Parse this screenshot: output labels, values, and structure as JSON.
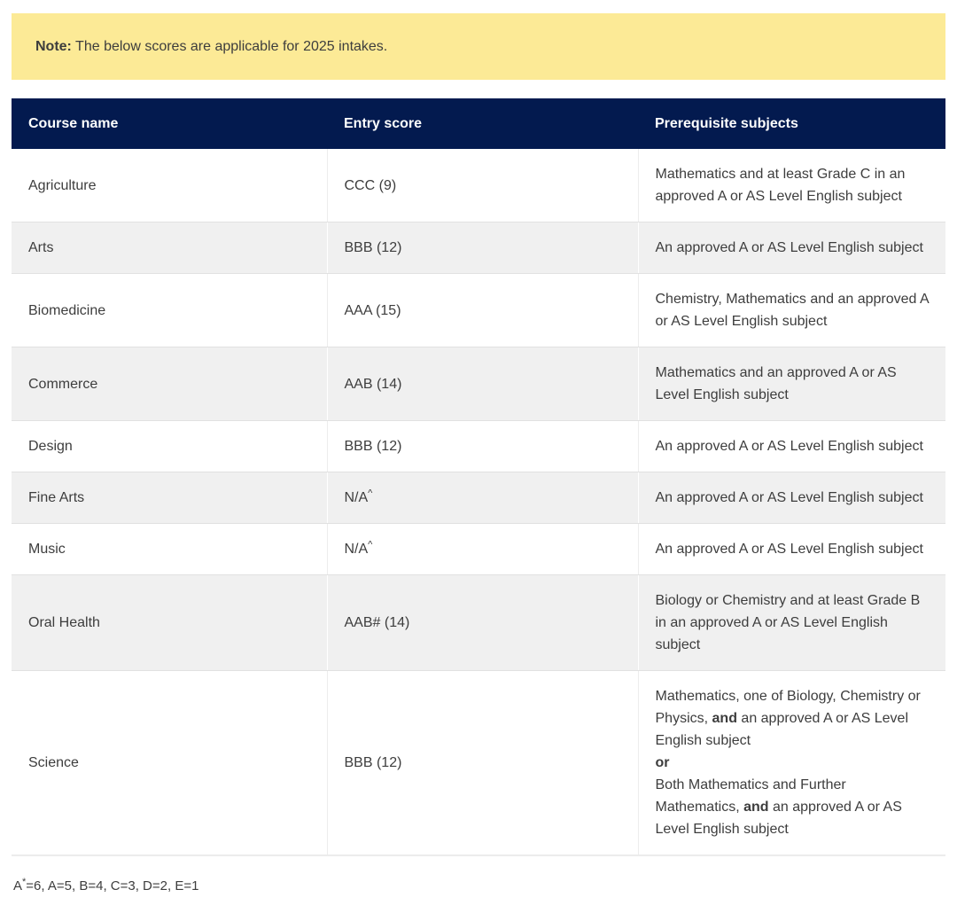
{
  "note": {
    "label": "Note:",
    "text": "The below scores are applicable for 2025 intakes."
  },
  "table": {
    "headers": [
      "Course name",
      "Entry score",
      "Prerequisite subjects"
    ],
    "rows": [
      {
        "course": "Agriculture",
        "score": "CCC (9)",
        "score_sup": "",
        "prereq": [
          [
            {
              "t": "Mathematics and at least Grade C in an approved A or AS Level English subject"
            }
          ]
        ]
      },
      {
        "course": "Arts",
        "score": "BBB (12)",
        "score_sup": "",
        "prereq": [
          [
            {
              "t": "An approved A or AS Level English subject"
            }
          ]
        ]
      },
      {
        "course": "Biomedicine",
        "score": "AAA (15)",
        "score_sup": "",
        "prereq": [
          [
            {
              "t": "Chemistry, Mathematics and an approved A or AS Level English subject"
            }
          ]
        ]
      },
      {
        "course": "Commerce",
        "score": "AAB (14)",
        "score_sup": "",
        "prereq": [
          [
            {
              "t": "Mathematics and an approved A or AS Level English subject"
            }
          ]
        ]
      },
      {
        "course": "Design",
        "score": "BBB (12)",
        "score_sup": "",
        "prereq": [
          [
            {
              "t": "An approved A or AS Level English subject"
            }
          ]
        ]
      },
      {
        "course": "Fine Arts",
        "score": "N/A",
        "score_sup": "^",
        "prereq": [
          [
            {
              "t": "An approved A or AS Level English subject"
            }
          ]
        ]
      },
      {
        "course": "Music",
        "score": "N/A",
        "score_sup": "^",
        "prereq": [
          [
            {
              "t": "An approved A or AS Level English subject"
            }
          ]
        ]
      },
      {
        "course": "Oral Health",
        "score": "AAB# (14)",
        "score_sup": "",
        "prereq": [
          [
            {
              "t": "Biology or Chemistry and at least Grade B in an approved A or AS Level English subject"
            }
          ]
        ]
      },
      {
        "course": "Science",
        "score": "BBB (12)",
        "score_sup": "",
        "prereq": [
          [
            {
              "t": "Mathematics, one of Biology, Chemistry or Physics, "
            },
            {
              "t": "and",
              "b": true
            },
            {
              "t": " an approved A or AS Level English subject"
            }
          ],
          [
            {
              "t": "or",
              "b": true
            }
          ],
          [
            {
              "t": "Both Mathematics and Further Mathematics, "
            },
            {
              "t": "and",
              "b": true
            },
            {
              "t": " an approved A or AS Level English subject"
            }
          ]
        ]
      }
    ]
  },
  "footnote": {
    "prefix": "A",
    "sup": "*",
    "rest": "=6, A=5, B=4, C=3, D=2, E=1"
  },
  "colors": {
    "header_bg": "#031a4f",
    "header_text": "#ffffff",
    "note_bg": "#fcea96",
    "row_alt_bg": "#f0f0f0",
    "border": "#e1e1e1",
    "text": "#3d3d3d"
  }
}
